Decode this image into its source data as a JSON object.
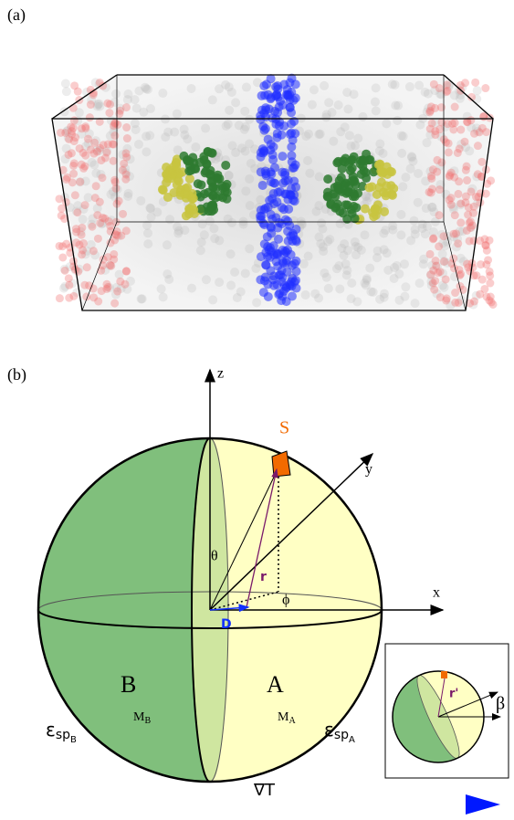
{
  "panel_a": {
    "label": "(a)"
  },
  "panel_b": {
    "label": "(b)",
    "axes": {
      "z": "z",
      "y": "y",
      "x": "x"
    },
    "symbols": {
      "surface": "S",
      "theta": "θ",
      "position": "r",
      "phi": "ϕ",
      "displacement": "D"
    },
    "hemispheres": {
      "B": {
        "name": "B",
        "mass": {
          "base": "M",
          "sub": "B"
        },
        "soret": {
          "base": "ε",
          "sub": "sp",
          "subsub": "B"
        }
      },
      "A": {
        "name": "A",
        "mass": {
          "base": "M",
          "sub": "A"
        },
        "soret": {
          "base": "ε",
          "sub": "sp",
          "subsub": "A"
        }
      }
    },
    "gradient": "∇T",
    "inset": {
      "position": "r'",
      "angle": "β"
    }
  }
}
